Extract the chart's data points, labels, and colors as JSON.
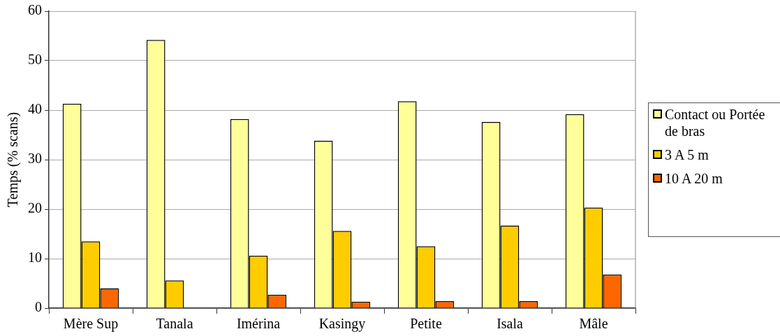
{
  "chart_data": {
    "type": "bar",
    "ylabel": "Temps (% scans)",
    "categories": [
      "Mère Sup",
      "Tanala",
      "Imérina",
      "Kasingy",
      "Petite",
      "Isala",
      "Mâle"
    ],
    "series": [
      {
        "name": "Contact ou Portée de bras",
        "color": "#ffff99",
        "values": [
          41.3,
          54.2,
          38.2,
          33.8,
          41.8,
          37.6,
          39.2
        ]
      },
      {
        "name": "3 A 5 m",
        "color": "#ffcc00",
        "values": [
          13.5,
          5.6,
          10.6,
          15.6,
          12.5,
          16.7,
          20.3
        ]
      },
      {
        "name": "10 A 20 m",
        "color": "#ff6600",
        "values": [
          4.0,
          0,
          2.7,
          1.3,
          1.4,
          1.4,
          6.8
        ]
      }
    ],
    "ylim": [
      0,
      60
    ],
    "yticks": [
      0,
      10,
      20,
      30,
      40,
      50,
      60
    ],
    "grid": "y",
    "legend": "right"
  }
}
